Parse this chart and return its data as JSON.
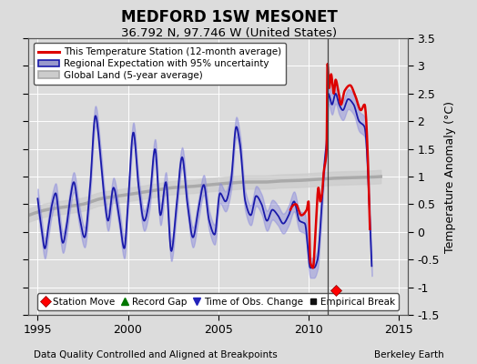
{
  "title": "MEDFORD 1SW MESONET",
  "subtitle": "36.792 N, 97.746 W (United States)",
  "xlabel_left": "Data Quality Controlled and Aligned at Breakpoints",
  "xlabel_right": "Berkeley Earth",
  "ylabel": "Temperature Anomaly (°C)",
  "xlim": [
    1994.5,
    2015.5
  ],
  "ylim": [
    -1.5,
    3.5
  ],
  "yticks": [
    -1.5,
    -1.0,
    -0.5,
    0.0,
    0.5,
    1.0,
    1.5,
    2.0,
    2.5,
    3.0,
    3.5
  ],
  "xticks": [
    1995,
    2000,
    2005,
    2010,
    2015
  ],
  "bg_color": "#dcdcdc",
  "plot_bg_color": "#dcdcdc",
  "grid_color": "#ffffff",
  "vertical_line_x": 2011.08,
  "station_move_x": 2011.5,
  "station_move_y": -1.05,
  "legend1_labels": [
    "This Temperature Station (12-month average)",
    "Regional Expectation with 95% uncertainty",
    "Global Land (5-year average)"
  ],
  "legend2_labels": [
    "Station Move",
    "Record Gap",
    "Time of Obs. Change",
    "Empirical Break"
  ],
  "reg_color": "#1a1aaa",
  "reg_band_color": "#8888dd",
  "glob_color": "#aaaaaa",
  "glob_band_color": "#cccccc",
  "stat_color": "#dd0000",
  "reg_key_points": [
    [
      1995.0,
      0.6
    ],
    [
      1995.2,
      0.1
    ],
    [
      1995.4,
      -0.3
    ],
    [
      1995.6,
      0.1
    ],
    [
      1995.8,
      0.5
    ],
    [
      1996.0,
      0.7
    ],
    [
      1996.2,
      0.2
    ],
    [
      1996.4,
      -0.2
    ],
    [
      1996.6,
      0.1
    ],
    [
      1996.8,
      0.6
    ],
    [
      1997.0,
      0.9
    ],
    [
      1997.3,
      0.3
    ],
    [
      1997.6,
      -0.1
    ],
    [
      1997.9,
      0.8
    ],
    [
      1998.2,
      2.1
    ],
    [
      1998.5,
      1.3
    ],
    [
      1998.7,
      0.6
    ],
    [
      1998.9,
      0.2
    ],
    [
      1999.2,
      0.8
    ],
    [
      1999.5,
      0.3
    ],
    [
      1999.8,
      -0.3
    ],
    [
      2000.0,
      0.5
    ],
    [
      2000.3,
      1.8
    ],
    [
      2000.6,
      0.8
    ],
    [
      2000.9,
      0.2
    ],
    [
      2001.2,
      0.6
    ],
    [
      2001.5,
      1.5
    ],
    [
      2001.8,
      0.3
    ],
    [
      2002.1,
      0.9
    ],
    [
      2002.4,
      -0.35
    ],
    [
      2002.7,
      0.5
    ],
    [
      2003.0,
      1.35
    ],
    [
      2003.3,
      0.5
    ],
    [
      2003.6,
      -0.1
    ],
    [
      2003.9,
      0.4
    ],
    [
      2004.2,
      0.85
    ],
    [
      2004.5,
      0.2
    ],
    [
      2004.8,
      -0.05
    ],
    [
      2005.1,
      0.7
    ],
    [
      2005.4,
      0.55
    ],
    [
      2005.7,
      0.9
    ],
    [
      2006.0,
      1.9
    ],
    [
      2006.2,
      1.6
    ],
    [
      2006.5,
      0.55
    ],
    [
      2006.8,
      0.3
    ],
    [
      2007.1,
      0.65
    ],
    [
      2007.4,
      0.5
    ],
    [
      2007.7,
      0.2
    ],
    [
      2008.0,
      0.4
    ],
    [
      2008.3,
      0.3
    ],
    [
      2008.6,
      0.15
    ],
    [
      2008.9,
      0.3
    ],
    [
      2009.2,
      0.55
    ],
    [
      2009.5,
      0.2
    ],
    [
      2009.8,
      0.15
    ],
    [
      2010.1,
      -0.65
    ],
    [
      2010.3,
      -0.65
    ],
    [
      2010.5,
      -0.5
    ],
    [
      2010.7,
      0.3
    ],
    [
      2010.9,
      1.3
    ],
    [
      2011.0,
      1.6
    ],
    [
      2011.1,
      2.5
    ],
    [
      2011.3,
      2.3
    ],
    [
      2011.5,
      2.5
    ],
    [
      2011.7,
      2.3
    ],
    [
      2011.9,
      2.2
    ],
    [
      2012.2,
      2.4
    ],
    [
      2012.5,
      2.3
    ],
    [
      2012.8,
      2.0
    ],
    [
      2013.1,
      1.9
    ],
    [
      2013.4,
      0.2
    ]
  ],
  "stat_key_points": [
    [
      2009.0,
      0.4
    ],
    [
      2009.3,
      0.5
    ],
    [
      2009.6,
      0.3
    ],
    [
      2009.9,
      0.4
    ],
    [
      2010.0,
      0.55
    ],
    [
      2010.1,
      -0.55
    ],
    [
      2010.25,
      -0.65
    ],
    [
      2010.4,
      0.1
    ],
    [
      2010.55,
      0.8
    ],
    [
      2010.65,
      0.55
    ],
    [
      2010.75,
      0.7
    ],
    [
      2010.85,
      1.1
    ],
    [
      2010.95,
      1.3
    ],
    [
      2011.0,
      1.5
    ],
    [
      2011.05,
      3.05
    ],
    [
      2011.15,
      2.6
    ],
    [
      2011.25,
      2.85
    ],
    [
      2011.4,
      2.5
    ],
    [
      2011.5,
      2.75
    ],
    [
      2011.65,
      2.55
    ],
    [
      2011.8,
      2.3
    ],
    [
      2012.0,
      2.55
    ],
    [
      2012.3,
      2.65
    ],
    [
      2012.6,
      2.45
    ],
    [
      2012.9,
      2.2
    ],
    [
      2013.1,
      2.3
    ],
    [
      2013.4,
      0.05
    ]
  ],
  "glob_key_points": [
    [
      1994.5,
      0.3
    ],
    [
      1995.5,
      0.4
    ],
    [
      1996.5,
      0.45
    ],
    [
      1997.5,
      0.5
    ],
    [
      1998.5,
      0.6
    ],
    [
      1999.5,
      0.65
    ],
    [
      2000.5,
      0.7
    ],
    [
      2001.5,
      0.75
    ],
    [
      2002.5,
      0.8
    ],
    [
      2003.5,
      0.82
    ],
    [
      2004.5,
      0.85
    ],
    [
      2005.5,
      0.88
    ],
    [
      2006.5,
      0.9
    ],
    [
      2007.5,
      0.9
    ],
    [
      2008.5,
      0.92
    ],
    [
      2009.5,
      0.93
    ],
    [
      2010.5,
      0.95
    ],
    [
      2011.5,
      0.97
    ],
    [
      2012.5,
      0.98
    ],
    [
      2013.5,
      0.99
    ],
    [
      2014.0,
      1.0
    ]
  ]
}
